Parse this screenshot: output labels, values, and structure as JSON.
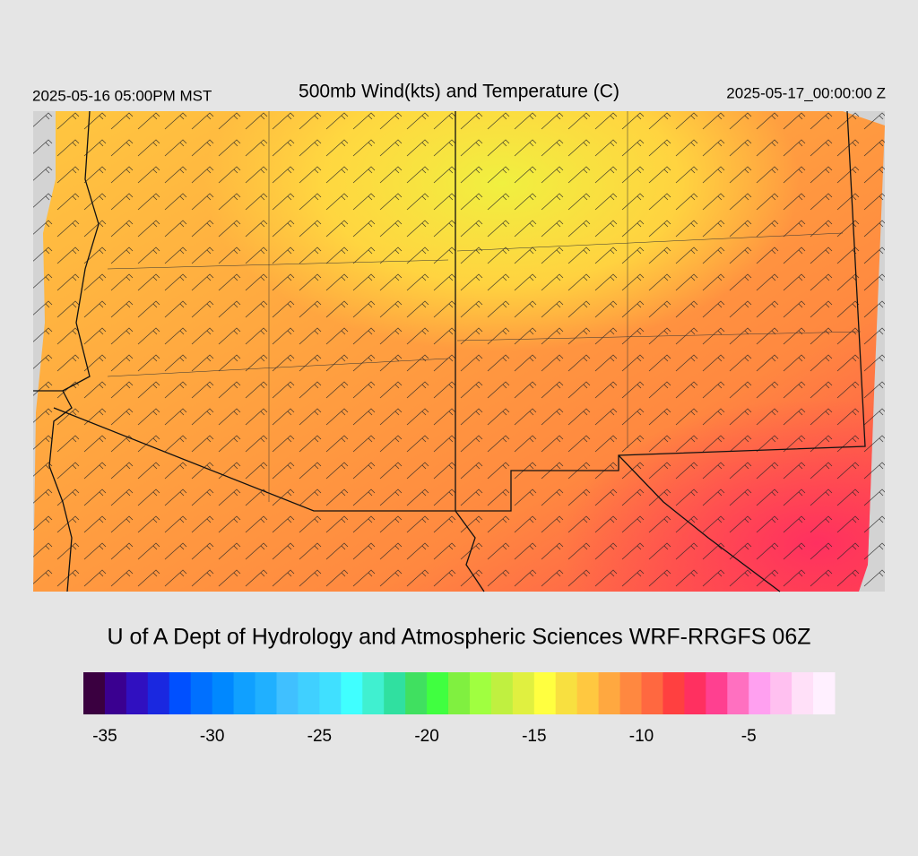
{
  "header": {
    "left": "2025-05-16 05:00PM MST",
    "title": "500mb Wind(kts) and Temperature (C)",
    "right": "2025-05-17_00:00:00 Z"
  },
  "credit": "U of A Dept of Hydrology and Atmospheric Sciences WRF-RRGFS 06Z",
  "colorbar": {
    "range": [
      -36,
      -1
    ],
    "ticks": [
      -35,
      -30,
      -25,
      -20,
      -15,
      -10,
      -5
    ],
    "colors": [
      "#3a0040",
      "#3a0090",
      "#3010c0",
      "#1a28e0",
      "#0050ff",
      "#0070ff",
      "#0088ff",
      "#10a0ff",
      "#20b0ff",
      "#40c0ff",
      "#40d0ff",
      "#40e0ff",
      "#40ffff",
      "#40f0d0",
      "#30e0a0",
      "#40e060",
      "#40ff40",
      "#80f040",
      "#a0ff40",
      "#c0f040",
      "#e0f040",
      "#ffff40",
      "#f8e040",
      "#ffc840",
      "#ffa840",
      "#ff8840",
      "#ff6840",
      "#ff4040",
      "#ff3060",
      "#ff4090",
      "#ff70c0",
      "#ffa0f0",
      "#ffc0f0",
      "#ffe0f8",
      "#fff0ff"
    ]
  }
}
